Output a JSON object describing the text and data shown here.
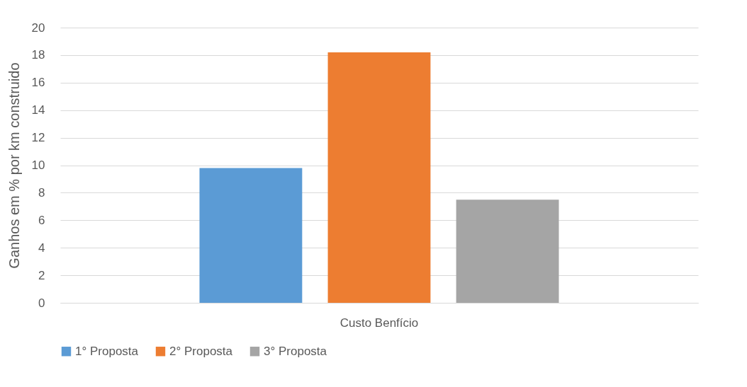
{
  "chart_data": {
    "type": "bar",
    "ylabel": "Ganhos em %  por km construido",
    "categories": [
      "Custo Benfício"
    ],
    "series": [
      {
        "name": "1° Proposta",
        "color": "#5b9bd5",
        "values": [
          9.8
        ]
      },
      {
        "name": "2° Proposta",
        "color": "#ed7d31",
        "values": [
          18.2
        ]
      },
      {
        "name": "3° Proposta",
        "color": "#a5a5a5",
        "values": [
          7.5
        ]
      }
    ],
    "ylim": [
      0,
      20
    ],
    "yticks": [
      0,
      2,
      4,
      6,
      8,
      10,
      12,
      14,
      16,
      18,
      20
    ],
    "grid": "y",
    "legend": "bottom"
  }
}
